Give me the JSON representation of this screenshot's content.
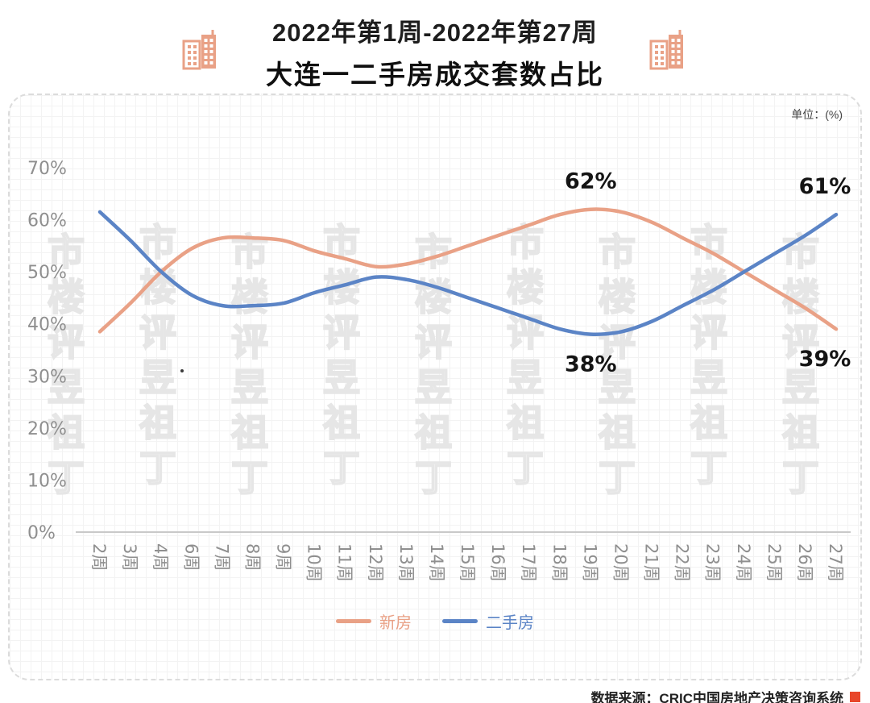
{
  "header": {
    "title_line1": "2022年第1周-2022年第27周",
    "title_line2": "大连一二手房成交套数占比"
  },
  "panel": {
    "unit_label": "单位：(%)"
  },
  "watermark": {
    "text": "丁祖昱评楼市"
  },
  "chart_data": {
    "type": "line",
    "title": "大连一二手房成交套数占比 2022年第1周-2022年第27周",
    "unit": "%",
    "categories": [
      "2周",
      "3周",
      "4周",
      "6周",
      "7周",
      "8周",
      "9周",
      "10周",
      "11周",
      "12周",
      "13周",
      "14周",
      "15周",
      "16周",
      "17周",
      "18周",
      "19周",
      "20周",
      "21周",
      "22周",
      "23周",
      "24周",
      "25周",
      "26周",
      "27周"
    ],
    "series": [
      {
        "name": "新房",
        "color": "#E9A186",
        "values": [
          38.5,
          44,
          50,
          54.5,
          56.5,
          56.5,
          56,
          54,
          52.5,
          51,
          51.5,
          53,
          55,
          57,
          59,
          61,
          62,
          61.5,
          59.5,
          56.5,
          53.5,
          50,
          46.5,
          43,
          39
        ]
      },
      {
        "name": "二手房",
        "color": "#5B84C6",
        "values": [
          61.5,
          56,
          50,
          45.5,
          43.5,
          43.5,
          44,
          46,
          47.5,
          49,
          48.5,
          47,
          45,
          43,
          41,
          39,
          38,
          38.5,
          40.5,
          43.5,
          46.5,
          50,
          53.5,
          57,
          61
        ]
      }
    ],
    "ylim": [
      0,
      70
    ],
    "yticks": [
      "70%",
      "60%",
      "50%",
      "40%",
      "30%",
      "20%",
      "10%",
      "0%"
    ],
    "grid": "graph-paper",
    "legend_position": "bottom",
    "annotations": [
      {
        "text": "62%",
        "category": "19周",
        "value": 62,
        "placement": "above",
        "series": "新房"
      },
      {
        "text": "61%",
        "category": "27周",
        "value": 61,
        "placement": "above",
        "series": "二手房"
      },
      {
        "text": "38%",
        "category": "19周",
        "value": 38,
        "placement": "below",
        "series": "二手房"
      },
      {
        "text": "39%",
        "category": "27周",
        "value": 39,
        "placement": "below",
        "series": "新房"
      }
    ]
  },
  "footer": {
    "source": "数据来源：CRIC中国房地产决策咨询系统"
  }
}
